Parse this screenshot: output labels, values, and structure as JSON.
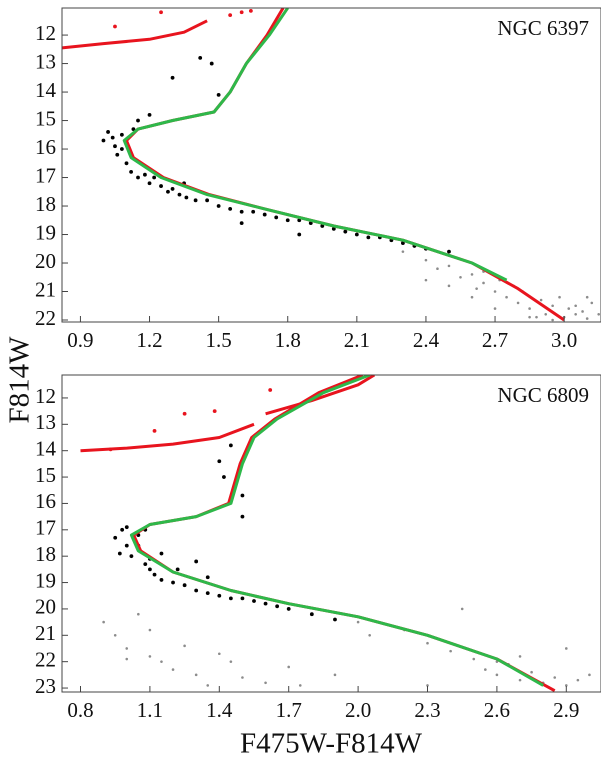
{
  "chart_data": [
    {
      "type": "scatter",
      "label": "NGC 6397",
      "y_label": "F814W",
      "xlim": [
        0.82,
        3.16
      ],
      "ylim": [
        22.07,
        11.05
      ],
      "xticks": [
        0.9,
        1.2,
        1.5,
        1.8,
        2.1,
        2.4,
        2.7,
        {
          "value": 3,
          "label": "3.0"
        }
      ],
      "yticks": [
        12,
        13,
        14,
        15,
        16,
        17,
        18,
        19,
        20,
        21,
        22
      ],
      "series": [
        {
          "mode": "points",
          "color": "#8c8c8c",
          "x": [
            2.3,
            2.4,
            2.45,
            2.5,
            2.55,
            2.6,
            2.62,
            2.65,
            2.7,
            2.72,
            2.75,
            2.8,
            2.82,
            2.85,
            2.9,
            2.92,
            2.95,
            3.0,
            3.02,
            3.05,
            3.08,
            3.1,
            3.12,
            3.15,
            2.6,
            2.7,
            2.78,
            2.88,
            2.98,
            3.05,
            2.5,
            2.65,
            2.85,
            2.95,
            3.1,
            2.4
          ],
          "y": [
            19.6,
            19.9,
            20.2,
            20.1,
            20.5,
            20.4,
            20.9,
            20.7,
            21.0,
            20.6,
            21.2,
            21.4,
            21.0,
            21.6,
            21.3,
            21.8,
            21.5,
            21.9,
            21.6,
            21.8,
            21.7,
            21.95,
            21.4,
            21.8,
            21.2,
            21.6,
            20.8,
            21.9,
            21.2,
            21.5,
            20.8,
            20.3,
            21.9,
            22.0,
            21.2,
            20.6
          ]
        },
        {
          "mode": "points",
          "color": "#000000",
          "x": [
            1.0,
            1.02,
            1.05,
            1.06,
            1.08,
            1.1,
            1.12,
            1.13,
            1.15,
            1.18,
            1.2,
            1.22,
            1.25,
            1.28,
            1.3,
            1.33,
            1.36,
            1.4,
            1.45,
            1.5,
            1.55,
            1.6,
            1.65,
            1.7,
            1.75,
            1.8,
            1.85,
            1.9,
            1.95,
            2.0,
            2.05,
            2.1,
            2.15,
            2.2,
            2.25,
            2.3,
            2.35,
            2.4,
            1.08,
            1.04,
            1.15,
            1.3,
            1.42,
            1.47,
            1.5,
            1.2,
            1.6,
            2.5,
            1.35,
            1.85
          ],
          "y": [
            15.7,
            15.4,
            15.9,
            16.2,
            15.5,
            16.5,
            16.8,
            15.3,
            17.0,
            16.9,
            17.2,
            17.0,
            17.3,
            17.5,
            17.4,
            17.6,
            17.7,
            17.8,
            17.8,
            18.0,
            18.1,
            18.2,
            18.2,
            18.3,
            18.4,
            18.5,
            18.5,
            18.6,
            18.7,
            18.8,
            18.9,
            19.0,
            19.1,
            19.1,
            19.2,
            19.3,
            19.4,
            19.5,
            16.0,
            15.6,
            15.0,
            13.5,
            12.8,
            13.0,
            14.1,
            14.8,
            18.6,
            19.6,
            17.2,
            19.0
          ]
        },
        {
          "mode": "points",
          "color": "#e8141e",
          "x": [
            1.05,
            1.25,
            1.55,
            1.6,
            1.64
          ],
          "y": [
            11.7,
            11.2,
            11.3,
            11.2,
            11.15
          ]
        },
        {
          "mode": "line",
          "color": "#e8141e",
          "x": [
            0.82,
            1.0,
            1.2,
            1.35,
            1.45
          ],
          "y": [
            12.45,
            12.3,
            12.15,
            11.9,
            11.5
          ]
        },
        {
          "mode": "line",
          "color": "#e8141e",
          "x": [
            1.78,
            1.71,
            1.62,
            1.55,
            1.48,
            1.3,
            1.15,
            1.1,
            1.13,
            1.26,
            1.46,
            1.7,
            2.0,
            2.3,
            2.6,
            2.8,
            3.0
          ],
          "y": [
            11.05,
            12,
            13,
            14,
            14.7,
            15.0,
            15.3,
            15.7,
            16.3,
            17.0,
            17.6,
            18.1,
            18.7,
            19.2,
            20.0,
            20.9,
            22.0
          ]
        },
        {
          "mode": "line",
          "color": "#2eb84a",
          "x": [
            1.8,
            1.72,
            1.62,
            1.55,
            1.48,
            1.3,
            1.15,
            1.09,
            1.12,
            1.25,
            1.45,
            1.7,
            2.0,
            2.3,
            2.6,
            2.75
          ],
          "y": [
            11.05,
            12,
            13,
            14,
            14.7,
            15.0,
            15.3,
            15.7,
            16.3,
            17.0,
            17.6,
            18.1,
            18.7,
            19.2,
            20.0,
            20.6
          ]
        }
      ]
    },
    {
      "type": "scatter",
      "label": "NGC 6809",
      "x_label": "F475W-F814W",
      "xlim": [
        0.72,
        3.05
      ],
      "ylim": [
        23.15,
        11.13
      ],
      "xticks": [
        0.8,
        1.1,
        1.4,
        1.7,
        {
          "value": 2,
          "label": "2.0"
        },
        2.3,
        2.6,
        2.9
      ],
      "yticks": [
        12,
        13,
        14,
        15,
        16,
        17,
        18,
        19,
        20,
        21,
        22,
        23
      ],
      "series": [
        {
          "mode": "points",
          "color": "#8c8c8c",
          "x": [
            0.9,
            0.95,
            1.0,
            1.05,
            1.1,
            1.15,
            1.2,
            1.3,
            1.4,
            1.5,
            1.6,
            1.75,
            1.9,
            2.05,
            2.2,
            2.3,
            2.4,
            2.5,
            2.55,
            2.6,
            2.65,
            2.7,
            2.75,
            2.8,
            2.85,
            2.9,
            2.95,
            3.0,
            1.1,
            1.25,
            1.45,
            1.7,
            2.0,
            2.3,
            2.6,
            2.9,
            1.0,
            1.35,
            2.45,
            2.7
          ],
          "y": [
            20.5,
            21.0,
            21.5,
            20.2,
            21.8,
            22.0,
            22.3,
            22.5,
            21.7,
            22.6,
            22.8,
            22.9,
            22.5,
            21.0,
            20.8,
            21.3,
            21.6,
            21.9,
            22.3,
            22.5,
            22.1,
            22.7,
            22.4,
            22.8,
            22.6,
            22.9,
            22.7,
            22.5,
            20.8,
            21.4,
            22.0,
            22.2,
            20.5,
            22.9,
            22.0,
            21.5,
            21.9,
            22.9,
            20.0,
            21.8
          ]
        },
        {
          "mode": "points",
          "color": "#000000",
          "x": [
            0.95,
            0.98,
            1.0,
            1.02,
            1.05,
            1.08,
            1.1,
            1.12,
            1.15,
            1.2,
            1.25,
            1.3,
            1.35,
            1.4,
            1.45,
            1.5,
            1.55,
            1.6,
            1.65,
            1.7,
            1.8,
            1.9,
            1.0,
            0.97,
            1.05,
            1.1,
            1.3,
            1.4,
            1.42,
            1.45,
            1.5,
            1.5,
            1.15,
            1.22,
            1.08,
            1.35
          ],
          "y": [
            17.3,
            17.0,
            17.6,
            18.0,
            17.2,
            18.3,
            18.5,
            18.7,
            18.9,
            19.0,
            19.1,
            19.3,
            19.4,
            19.5,
            19.6,
            19.6,
            19.7,
            19.8,
            19.9,
            20.0,
            20.2,
            20.4,
            16.9,
            17.9,
            17.6,
            18.1,
            18.2,
            14.4,
            15.0,
            13.8,
            15.7,
            16.5,
            17.9,
            18.5,
            17.0,
            18.8
          ]
        },
        {
          "mode": "points",
          "color": "#e8141e",
          "x": [
            0.93,
            1.12,
            1.25,
            1.38,
            1.62
          ],
          "y": [
            13.95,
            13.25,
            12.6,
            12.5,
            11.7
          ]
        },
        {
          "mode": "line",
          "color": "#e8141e",
          "x": [
            0.8,
            1.0,
            1.2,
            1.4,
            1.55
          ],
          "y": [
            14.0,
            13.9,
            13.75,
            13.5,
            13.0
          ]
        },
        {
          "mode": "line",
          "color": "#e8141e",
          "x": [
            1.6,
            1.8,
            2.0,
            2.07
          ],
          "y": [
            12.6,
            12.1,
            11.5,
            11.13
          ]
        },
        {
          "mode": "line",
          "color": "#e8141e",
          "x": [
            2.02,
            1.83,
            1.64,
            1.54,
            1.49,
            1.44,
            1.3,
            1.1,
            1.03,
            1.06,
            1.2,
            1.45,
            1.7,
            2.0,
            2.3,
            2.6,
            2.85
          ],
          "y": [
            11.13,
            11.8,
            12.8,
            13.5,
            14.5,
            16.0,
            16.5,
            16.8,
            17.2,
            17.8,
            18.6,
            19.3,
            19.8,
            20.3,
            21.0,
            21.9,
            23.1
          ]
        },
        {
          "mode": "line",
          "color": "#2eb84a",
          "x": [
            2.05,
            1.85,
            1.65,
            1.55,
            1.5,
            1.45,
            1.3,
            1.1,
            1.02,
            1.05,
            1.2,
            1.45,
            1.7,
            2.0,
            2.3,
            2.6,
            2.8
          ],
          "y": [
            11.13,
            11.8,
            12.8,
            13.5,
            14.5,
            16.0,
            16.5,
            16.8,
            17.2,
            17.8,
            18.6,
            19.3,
            19.8,
            20.3,
            21.0,
            21.9,
            22.9
          ]
        }
      ]
    }
  ]
}
